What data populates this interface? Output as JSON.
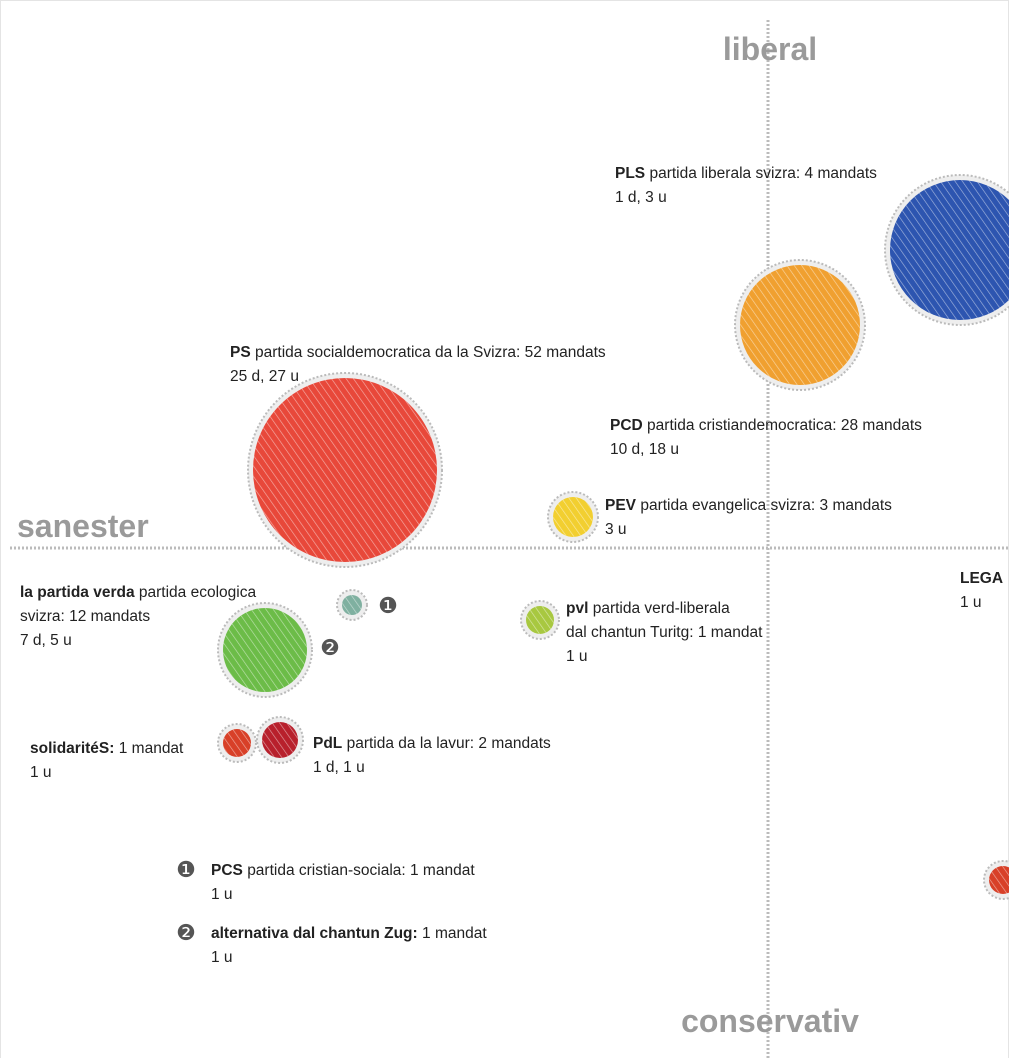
{
  "axes": {
    "top": "liberal",
    "left": "sanester",
    "bottom": "conservativ"
  },
  "parties": [
    {
      "abbr": "PLS",
      "lines": [
        "partida liberala svizra: 4 mandats"
      ],
      "seats": "1 d, 3 u"
    },
    {
      "abbr": "PS",
      "lines": [
        "partida socialdemocratica da la Svizra: 52 mandats"
      ],
      "seats": "25 d, 27 u"
    },
    {
      "abbr": "PCD",
      "lines": [
        "partida cristiandemocratica: 28 mandats"
      ],
      "seats": "10 d, 18 u"
    },
    {
      "abbr": "PEV",
      "lines": [
        "partida evangelica svizra: 3 mandats"
      ],
      "seats": "3 u"
    },
    {
      "abbr": "LEGA",
      "lines": [],
      "seats": "1 u"
    },
    {
      "abbr": "la partida verda",
      "lines": [
        "partida ecologica",
        "svizra: 12 mandats"
      ],
      "seats": "7 d, 5 u"
    },
    {
      "abbr": "pvl",
      "lines": [
        "partida verd-liberala",
        "dal chantun Turitg: 1 mandat"
      ],
      "seats": "1 u"
    },
    {
      "abbr": "solidaritéS:",
      "lines": [
        "1 mandat"
      ],
      "seats": "1 u"
    },
    {
      "abbr": "PdL",
      "lines": [
        "partida da la lavur: 2 mandats"
      ],
      "seats": "1 d, 1 u"
    }
  ],
  "footnotes": [
    {
      "marker": "❶",
      "abbr": "PCS",
      "lines": [
        "partida cristian-sociala: 1 mandat"
      ],
      "seats": "1 u"
    },
    {
      "marker": "❷",
      "abbr": "alternativa dal chantun Zug:",
      "lines": [
        "1 mandat"
      ],
      "seats": "1 u"
    }
  ]
}
